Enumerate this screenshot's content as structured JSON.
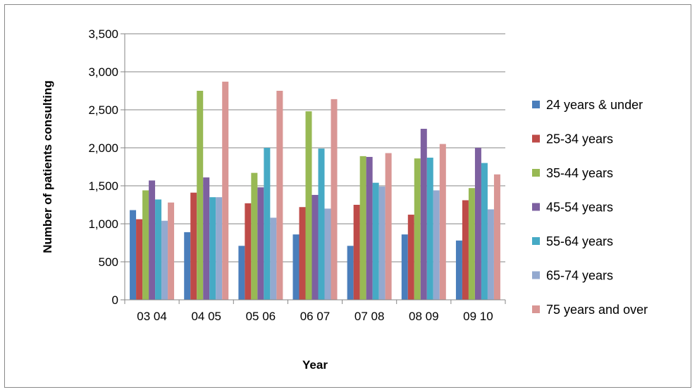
{
  "chart_data": {
    "type": "bar",
    "title": "",
    "xlabel": "Year",
    "ylabel": "Number of patients consulting",
    "ylim": [
      0,
      3500
    ],
    "yticks": [
      0,
      500,
      1000,
      1500,
      2000,
      2500,
      3000,
      3500
    ],
    "ytick_labels": [
      "0",
      "500",
      "1,000",
      "1,500",
      "2,000",
      "2,500",
      "3,000",
      "3,500"
    ],
    "grid": true,
    "legend_position": "right",
    "categories": [
      "03 04",
      "04 05",
      "05 06",
      "06 07",
      "07 08",
      "08 09",
      "09 10"
    ],
    "series": [
      {
        "name": "24 years & under",
        "color": "#4a7ebb",
        "values": [
          1180,
          890,
          710,
          860,
          710,
          860,
          780
        ]
      },
      {
        "name": "25-34 years",
        "color": "#be4b48",
        "values": [
          1060,
          1410,
          1270,
          1220,
          1250,
          1120,
          1310
        ]
      },
      {
        "name": "35-44 years",
        "color": "#98b954",
        "values": [
          1440,
          2750,
          1670,
          2480,
          1890,
          1860,
          1470
        ]
      },
      {
        "name": "45-54 years",
        "color": "#7d60a0",
        "values": [
          1570,
          1610,
          1480,
          1380,
          1880,
          2250,
          2000
        ]
      },
      {
        "name": "55-64 years",
        "color": "#46aac5",
        "values": [
          1320,
          1350,
          2000,
          1990,
          1540,
          1870,
          1800
        ]
      },
      {
        "name": "65-74 years",
        "color": "#93a9cf",
        "values": [
          1040,
          1350,
          1080,
          1200,
          1490,
          1440,
          1190
        ]
      },
      {
        "name": "75 years and over",
        "color": "#d99694",
        "values": [
          1280,
          2870,
          2750,
          2640,
          1930,
          2050,
          1650
        ]
      }
    ]
  }
}
